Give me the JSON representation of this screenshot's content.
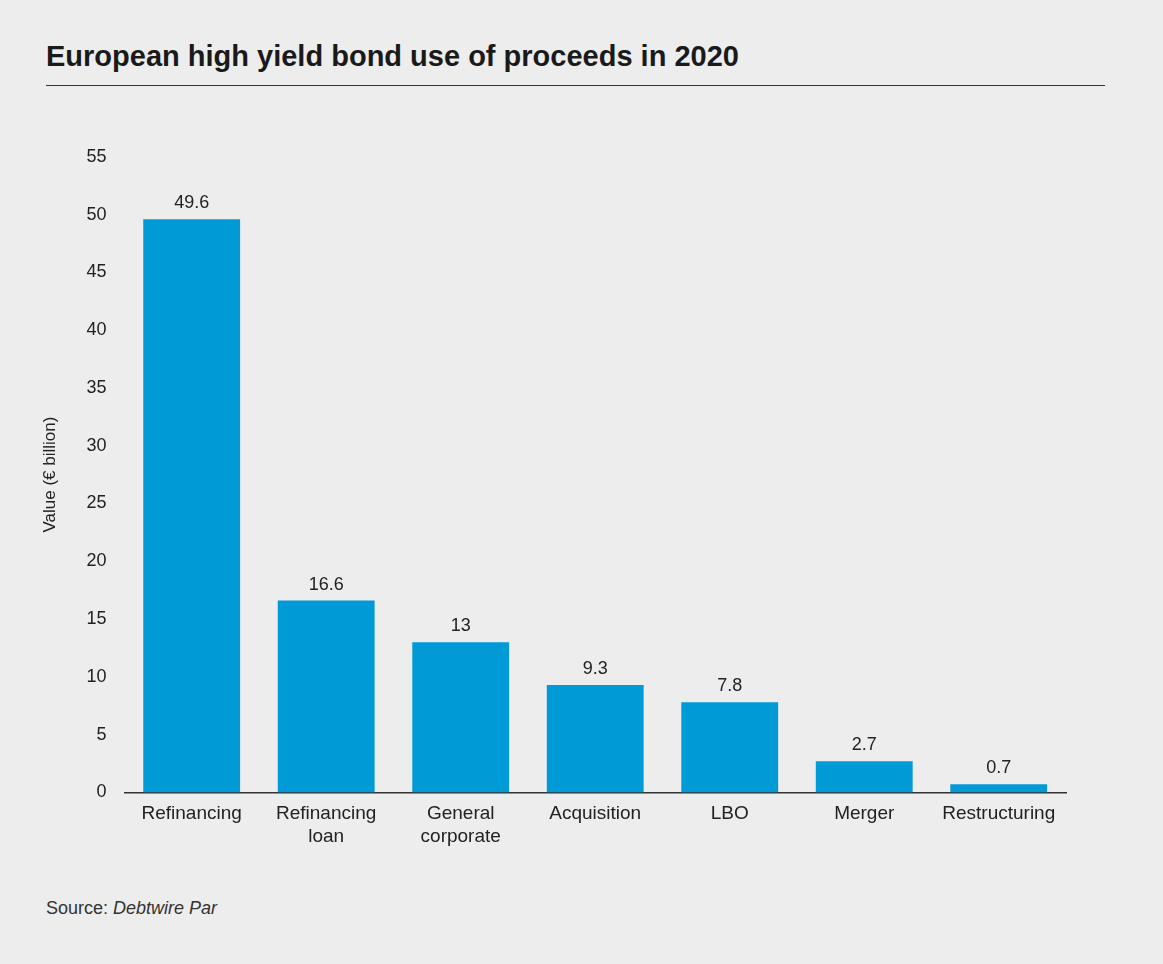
{
  "chart_data": {
    "type": "bar",
    "title": "European high yield bond use of proceeds in 2020",
    "y_label": "Value (€ billion)",
    "source": "Source: Debtwire Par",
    "categories": [
      "Refinancing",
      "Refinancing loan",
      "General corporate",
      "Acquisition",
      "LBO",
      "Merger",
      "Restructuring"
    ],
    "values": [
      49.6,
      16.6,
      13,
      9.3,
      7.8,
      2.7,
      0.7
    ],
    "color": "#009ad6",
    "ylim": [
      0,
      55
    ],
    "yticks": [
      0,
      5,
      10,
      15,
      20,
      25,
      30,
      35,
      40,
      45,
      50,
      55
    ],
    "grid": false,
    "data_labels": true
  }
}
